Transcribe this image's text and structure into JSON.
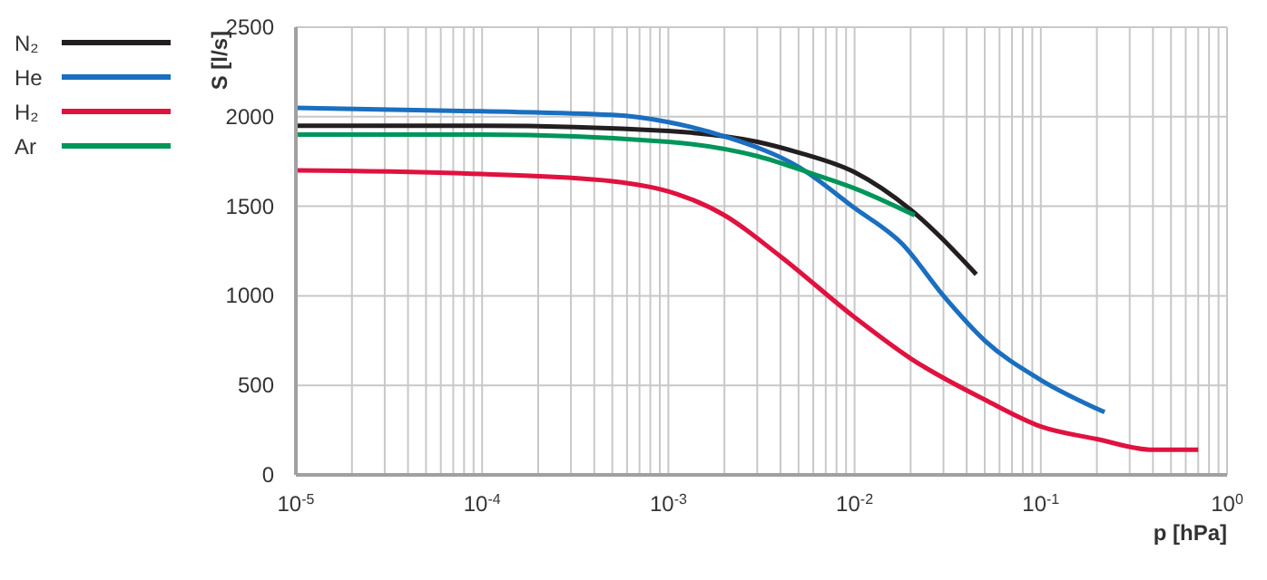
{
  "chart_data": {
    "type": "line",
    "xlabel": "p [hPa]",
    "ylabel": "S [l/s]",
    "log": "x",
    "grid": true,
    "legend": "top left",
    "marker": "none",
    "line_style": "solid",
    "xlim": [
      1e-05,
      1
    ],
    "ylim": [
      0,
      2500
    ],
    "yticks": [
      0,
      500,
      1000,
      1500,
      2000,
      2500
    ],
    "xticks": [
      {
        "value": 1e-05,
        "label": "10$^{-5}$"
      },
      {
        "value": 2e-05,
        "label": null
      },
      {
        "value": 3e-05,
        "label": null
      },
      {
        "value": 4e-05,
        "label": null
      },
      {
        "value": 5e-05,
        "label": null
      },
      {
        "value": 6e-05,
        "label": null
      },
      {
        "value": 7e-05,
        "label": null
      },
      {
        "value": 8e-05,
        "label": null
      },
      {
        "value": 9e-05,
        "label": null
      },
      {
        "value": 0.0001,
        "label": "10$^{-4}$"
      },
      {
        "value": 0.0002,
        "label": null
      },
      {
        "value": 0.0003,
        "label": null
      },
      {
        "value": 0.0004,
        "label": null
      },
      {
        "value": 0.0005,
        "label": null
      },
      {
        "value": 0.0006,
        "label": null
      },
      {
        "value": 0.0007,
        "label": null
      },
      {
        "value": 0.0008,
        "label": null
      },
      {
        "value": 0.0009,
        "label": null
      },
      {
        "value": 0.001,
        "label": "10$^{-3}$"
      },
      {
        "value": 0.002,
        "label": null
      },
      {
        "value": 0.003,
        "label": null
      },
      {
        "value": 0.004,
        "label": null
      },
      {
        "value": 0.005,
        "label": null
      },
      {
        "value": 0.006,
        "label": null
      },
      {
        "value": 0.007,
        "label": null
      },
      {
        "value": 0.008,
        "label": null
      },
      {
        "value": 0.009,
        "label": null
      },
      {
        "value": 0.01,
        "label": "10$^{-2}$"
      },
      {
        "value": 0.02,
        "label": null
      },
      {
        "value": 0.03,
        "label": null
      },
      {
        "value": 0.04,
        "label": null
      },
      {
        "value": 0.05,
        "label": null
      },
      {
        "value": 0.06,
        "label": null
      },
      {
        "value": 0.07,
        "label": null
      },
      {
        "value": 0.08,
        "label": null
      },
      {
        "value": 0.09,
        "label": null
      },
      {
        "value": 0.1,
        "label": "10$^{-1}$"
      },
      {
        "value": 0.2,
        "label": null
      },
      {
        "value": 0.3,
        "label": null
      },
      {
        "value": 0.4,
        "label": null
      },
      {
        "value": 0.5,
        "label": null
      },
      {
        "value": 0.6,
        "label": null
      },
      {
        "value": 0.7,
        "label": null
      },
      {
        "value": 0.8,
        "label": null
      },
      {
        "value": 0.9,
        "label": null
      },
      {
        "value": 1,
        "label": "10$^{0}$"
      }
    ],
    "series": [
      {
        "name": "N₂",
        "color": "#231f20",
        "x": [
          1e-05,
          0.0001,
          0.001,
          0.003,
          0.005,
          0.01,
          0.02,
          0.045
        ],
        "values": [
          1950,
          1950,
          1920,
          1860,
          1800,
          1690,
          1480,
          1120
        ]
      },
      {
        "name": "He",
        "color": "#1a6fc0",
        "x": [
          1e-05,
          0.0001,
          0.0005,
          0.001,
          0.002,
          0.005,
          0.01,
          0.018,
          0.03,
          0.05,
          0.1,
          0.22
        ],
        "values": [
          2050,
          2030,
          2010,
          1970,
          1890,
          1720,
          1490,
          1290,
          1000,
          750,
          530,
          350
        ]
      },
      {
        "name": "H₂",
        "color": "#e0123f",
        "x": [
          1e-05,
          0.0001,
          0.0005,
          0.0011,
          0.002,
          0.004,
          0.01,
          0.02,
          0.05,
          0.1,
          0.2,
          0.4,
          0.7
        ],
        "values": [
          1700,
          1680,
          1640,
          1570,
          1450,
          1220,
          880,
          650,
          420,
          270,
          200,
          140,
          140
        ]
      },
      {
        "name": "Ar",
        "color": "#00955a",
        "x": [
          1e-05,
          0.0001,
          0.001,
          0.003,
          0.006,
          0.01,
          0.021
        ],
        "values": [
          1900,
          1900,
          1860,
          1780,
          1680,
          1600,
          1450
        ]
      }
    ]
  }
}
